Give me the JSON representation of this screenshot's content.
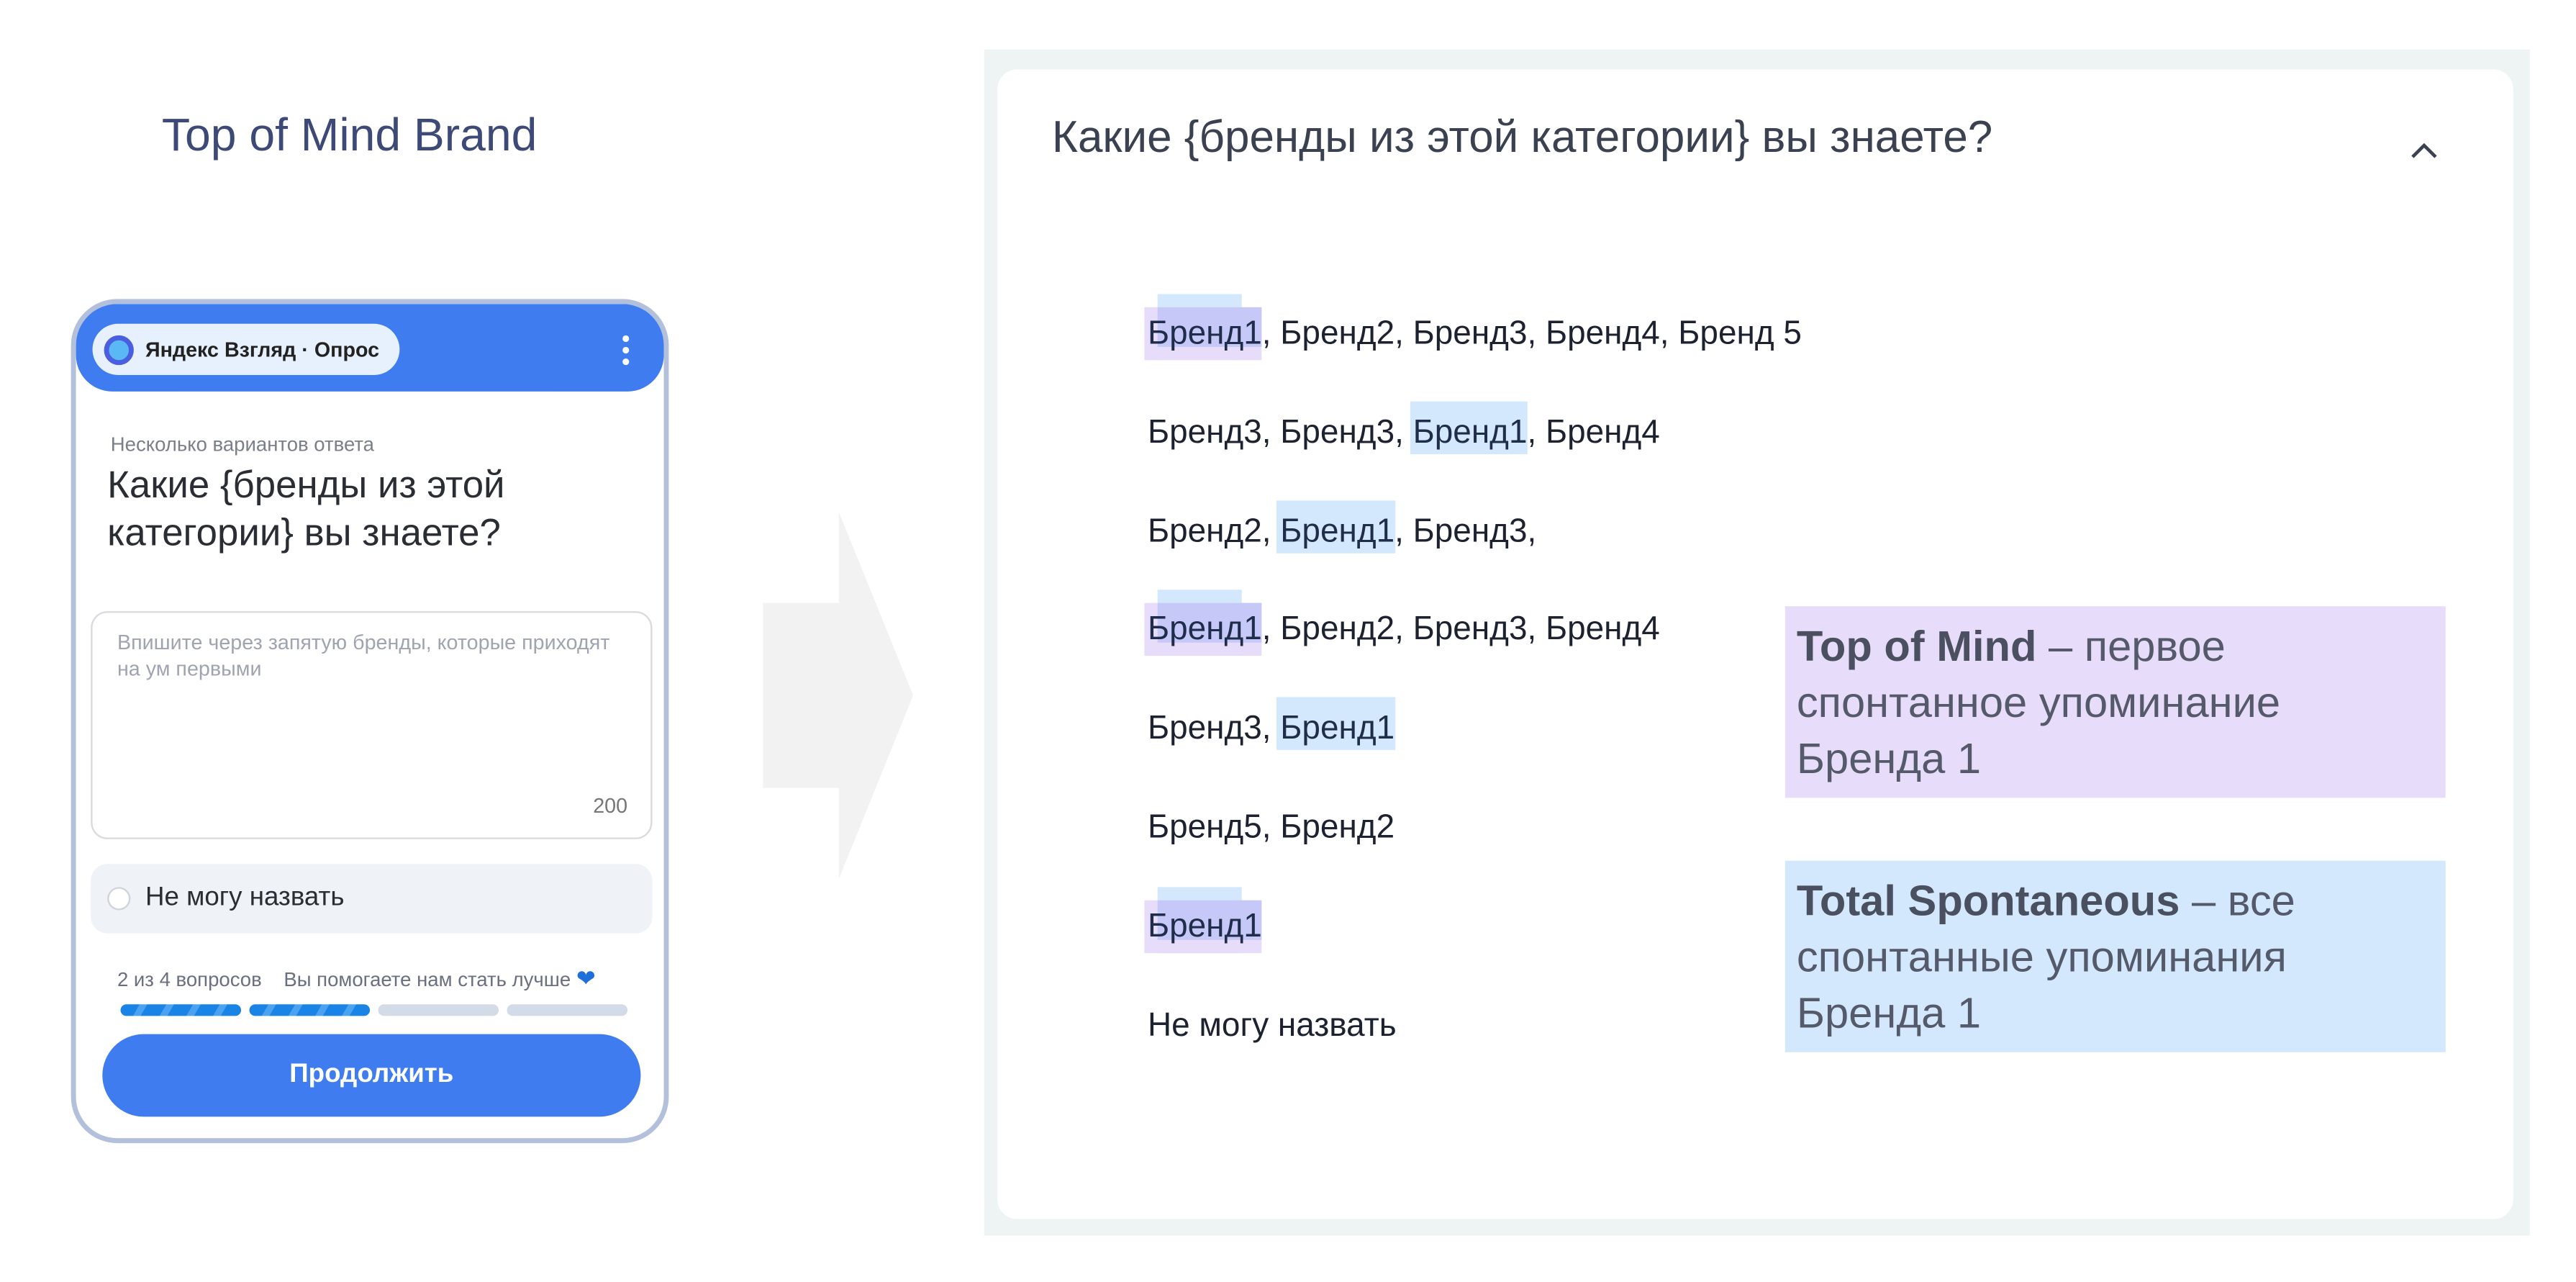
{
  "heading": "Top of Mind Brand",
  "phone": {
    "app_name": "Яндекс Взгляд · Опрос",
    "subtitle": "Несколько вариантов ответа",
    "question": "Какие {бренды из этой категории} вы знаете?",
    "input_placeholder": "Впишите через запятую бренды, которые приходят на ум первыми",
    "char_limit": "200",
    "option": "Не могу назвать",
    "progress_text": "2 из 4 вопросов",
    "thanks_text": "Вы помогаете нам стать лучше",
    "progress": {
      "current": 2,
      "total": 4
    },
    "continue_label": "Продолжить",
    "accent": "#3f7cf0"
  },
  "panel": {
    "question": "Какие {бренды из этой категории} вы знаете?",
    "answers": [
      {
        "hl": "Бренд1",
        "type": "both",
        "rest": ", Бренд2, Бренд3, Бренд4, Бренд 5"
      },
      {
        "pre": "Бренд3, Бренд3, ",
        "hl": "Бренд1",
        "type": "blue",
        "rest": ", Бренд4"
      },
      {
        "pre": "Бренд2, ",
        "hl": "Бренд1",
        "type": "blue",
        "rest": ", Бренд3,"
      },
      {
        "hl": "Бренд1",
        "type": "both",
        "rest": ", Бренд2, Бренд3, Бренд4"
      },
      {
        "pre": "Бренд3, ",
        "hl": "Бренд1",
        "type": "blue"
      },
      {
        "pre": "Бренд5, Бренд2"
      },
      {
        "hl": "Бренд1",
        "type": "both"
      },
      {
        "pre": "Не могу назвать"
      }
    ],
    "tom": {
      "term": "Top of Mind",
      "desc": " – первое спонтанное упоминание Бренда 1"
    },
    "ts": {
      "term": "Total Spontaneous",
      "desc": " – все спонтанные упоминания Бренда 1"
    },
    "colors": {
      "top_of_mind": "#e8dcfb",
      "total_spontaneous": "#d4e8fd"
    }
  }
}
